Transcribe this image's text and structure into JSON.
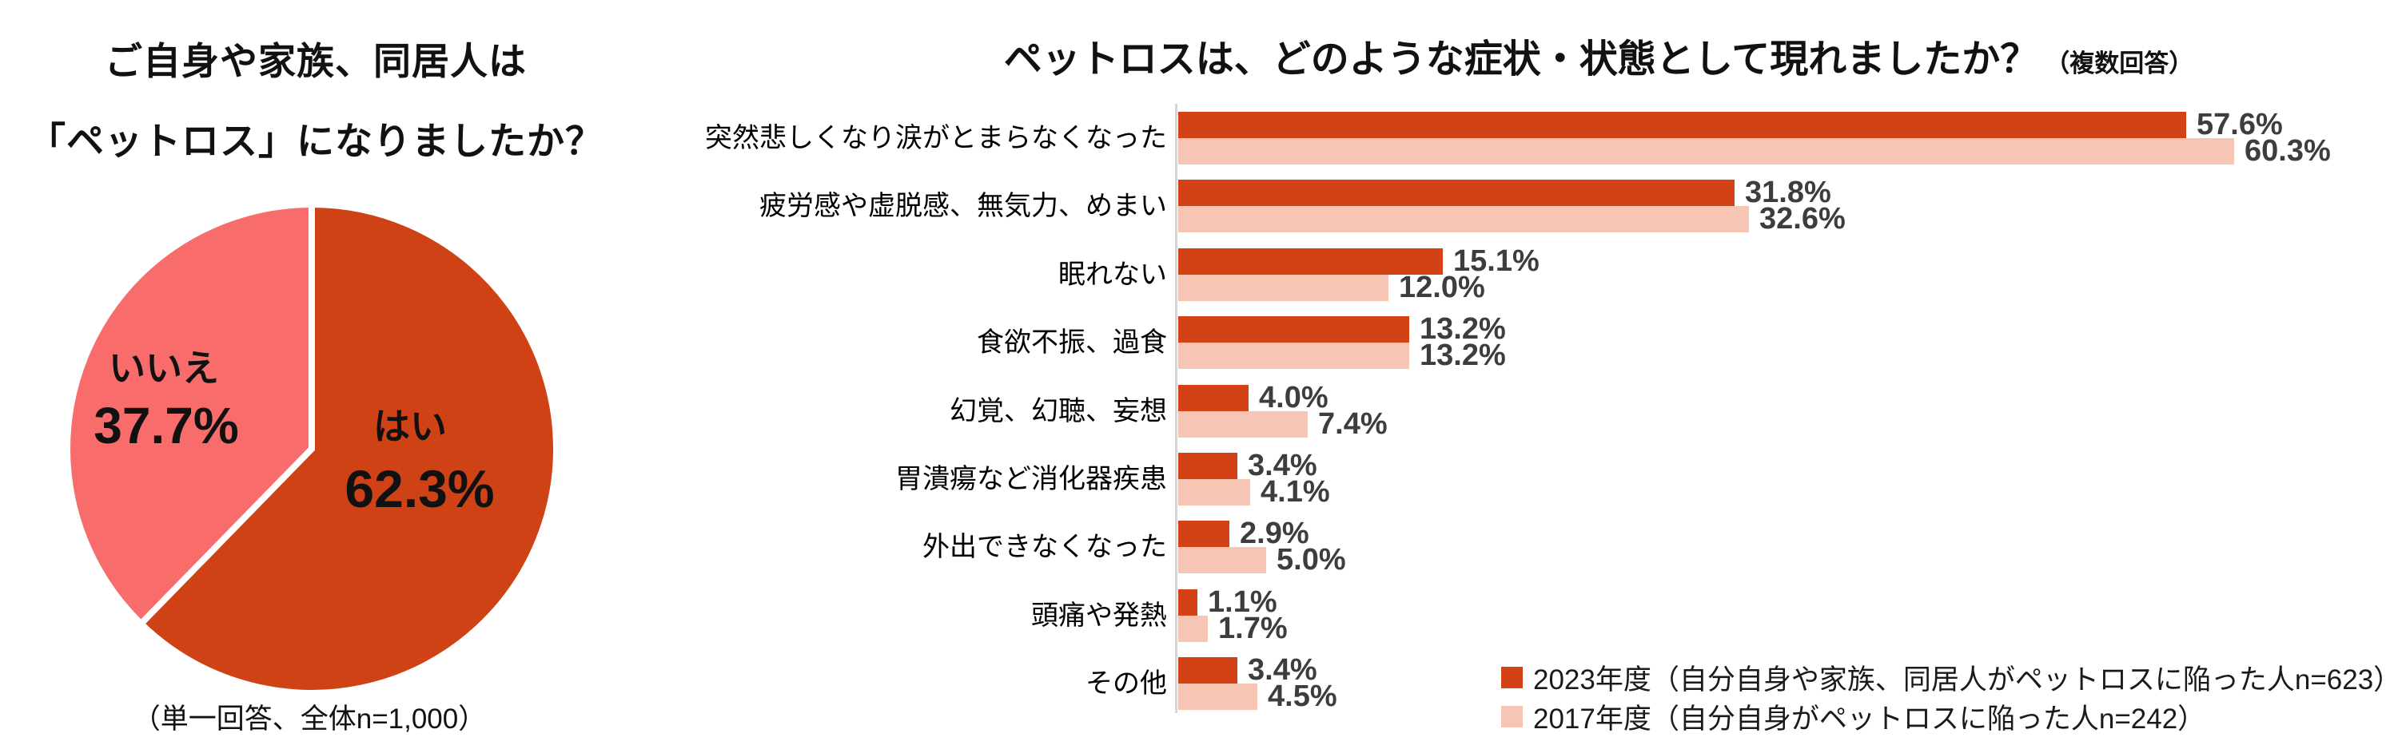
{
  "chart_data": [
    {
      "type": "pie",
      "title_lines": [
        "ご自身や家族、同居人は",
        "「ペットロス」になりましたか？"
      ],
      "note": "（単一回答、全体n=1,000）",
      "start_angle": "top-clockwise",
      "slices": [
        {
          "label": "はい",
          "value": 62.3,
          "color": "#cf4216"
        },
        {
          "label": "いいえ",
          "value": 37.7,
          "color": "#f96c6c"
        }
      ],
      "slice_divider_color": "#ffffff"
    },
    {
      "type": "bar",
      "orientation": "horizontal",
      "title": "ペットロスは、どのような症状・状態として現れましたか？",
      "title_note": "（複数回答）",
      "grid": false,
      "xlim": [
        0,
        68
      ],
      "value_suffix": "%",
      "value_label_color": "#3d3d3d",
      "axis_line_color": "#d6d6d6",
      "legend_position": "bottom-right",
      "categories": [
        "突然悲しくなり涙がとまらなくなった",
        "疲労感や虚脱感、無気力、めまい",
        "眠れない",
        "食欲不振、過食",
        "幻覚、幻聴、妄想",
        "胃潰瘍など消化器疾患",
        "外出できなくなった",
        "頭痛や発熱",
        "その他"
      ],
      "series": [
        {
          "name": "2023年度（自分自身や家族、同居人がペットロスに陥った人n=623）",
          "color": "#d24214",
          "values": [
            57.6,
            31.8,
            15.1,
            13.2,
            4.0,
            3.4,
            2.9,
            1.1,
            3.4
          ]
        },
        {
          "name": "2017年度（自分自身がペットロスに陥った人n=242）",
          "color": "#f6c5b4",
          "values": [
            60.3,
            32.6,
            12.0,
            13.2,
            7.4,
            4.1,
            5.0,
            1.7,
            4.5
          ]
        }
      ]
    }
  ]
}
